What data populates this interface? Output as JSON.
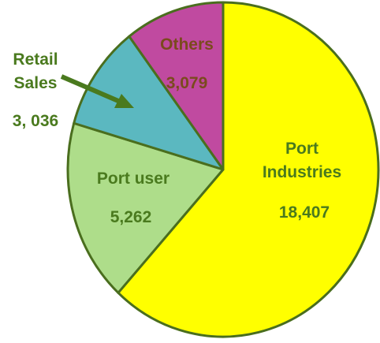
{
  "chart_data": {
    "type": "pie",
    "slices": [
      {
        "label_lines": [
          "Port",
          "Industries"
        ],
        "value": 18407,
        "value_label": "18,407",
        "color": "#ffff00",
        "text_color": "#4a7a1e"
      },
      {
        "label_lines": [
          "Port user"
        ],
        "value": 5262,
        "value_label": "5,262",
        "color": "#aedd8a",
        "text_color": "#4a7a1e"
      },
      {
        "label_lines": [
          "Retail",
          "Sales"
        ],
        "value": 3036,
        "value_label": "3, 036",
        "color": "#5bb8c0",
        "text_color": "#4a7a1e",
        "label_outside": true
      },
      {
        "label_lines": [
          "Others"
        ],
        "value": 3079,
        "value_label": "3,079",
        "color": "#c04aa0",
        "text_color": "#7a4a1e"
      }
    ],
    "start_angle_deg": 0,
    "direction": "clockwise",
    "edge_color": "#4a6e1e",
    "legend": "none"
  }
}
